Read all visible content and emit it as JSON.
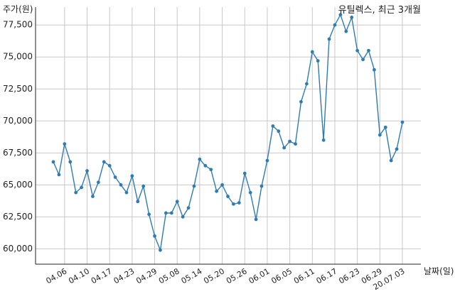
{
  "chart_data": {
    "type": "line",
    "title": "유틸렉스, 최근 3개월",
    "ylabel": "주가(원)",
    "xlabel": "날짜(일)",
    "ylim": [
      58800,
      78900
    ],
    "yticks": [
      60000,
      62500,
      65000,
      67500,
      70000,
      72500,
      75000,
      77500
    ],
    "ytick_labels": [
      "60,000",
      "62,500",
      "65,000",
      "67,500",
      "70,000",
      "72,500",
      "75,000",
      "77,500"
    ],
    "xtick_labels": [
      "04.06",
      "04.10",
      "04.17",
      "04.23",
      "04.29",
      "05.08",
      "05.14",
      "05.20",
      "05.26",
      "06.01",
      "06.05",
      "06.11",
      "06.17",
      "06.23",
      "06.29",
      "20.07.03"
    ],
    "xtick_indices": [
      2,
      6,
      10,
      14,
      18,
      22,
      26,
      30,
      34,
      38,
      42,
      46,
      50,
      54,
      58,
      62
    ],
    "grid": true,
    "color": "#2e7cb0",
    "values": [
      66800,
      65800,
      68200,
      66800,
      64400,
      64800,
      66100,
      64100,
      65200,
      66800,
      66500,
      65600,
      65000,
      64400,
      65700,
      63700,
      64900,
      62700,
      61000,
      59900,
      62800,
      62800,
      63700,
      62500,
      63200,
      64900,
      67000,
      66500,
      66200,
      64500,
      65000,
      64100,
      63500,
      63600,
      65900,
      64400,
      62300,
      64900,
      66900,
      69600,
      69200,
      67900,
      68400,
      68200,
      71500,
      72900,
      75400,
      74700,
      68500,
      76400,
      77500,
      78300,
      77000,
      78100,
      75500,
      74800,
      75500,
      74000,
      68900,
      69500,
      66900,
      67800,
      69900
    ]
  }
}
